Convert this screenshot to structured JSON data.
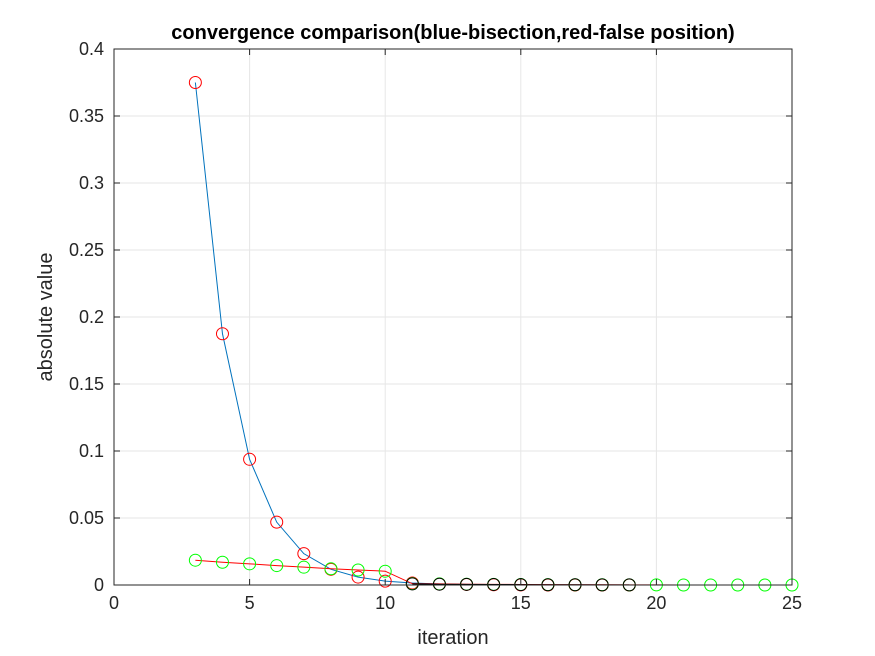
{
  "chart_data": {
    "type": "line",
    "title": "convergence comparison(blue-bisection,red-false position)",
    "xlabel": "iteration",
    "ylabel": "absolute value",
    "xlim": [
      0,
      25
    ],
    "ylim": [
      0,
      0.4
    ],
    "xticks": [
      "0",
      "5",
      "10",
      "15",
      "20",
      "25"
    ],
    "yticks": [
      "0",
      "0.05",
      "0.1",
      "0.15",
      "0.2",
      "0.25",
      "0.3",
      "0.35",
      "0.4"
    ],
    "grid": true,
    "series": [
      {
        "line_color": "#0072bd",
        "marker": "circle",
        "marker_color": "#ff0000",
        "x": [
          3,
          4,
          5,
          6,
          7,
          8,
          9,
          10,
          11,
          12,
          13,
          14,
          15,
          16,
          17,
          18,
          19
        ],
        "y": [
          0.375,
          0.1875,
          0.0938,
          0.0469,
          0.0234,
          0.0117,
          0.0059,
          0.0029,
          0.0015,
          0.0007,
          0.0004,
          0.0002,
          0.0001,
          0.0,
          0.0,
          0.0,
          0.0
        ]
      },
      {
        "line_color": "#ff0000",
        "marker": "circle",
        "marker_color": "#00ff00",
        "x": [
          3,
          4,
          5,
          6,
          7,
          8,
          9,
          10,
          11,
          12,
          13,
          14,
          15,
          16,
          17,
          18,
          19,
          20,
          21,
          22,
          23,
          24,
          25
        ],
        "y": [
          0.0185,
          0.017,
          0.0158,
          0.0145,
          0.0133,
          0.0121,
          0.0112,
          0.0103,
          0.001,
          0.0008,
          0.0006,
          0.0005,
          0.0004,
          0.0003,
          0.0002,
          0.0002,
          0.0001,
          0.0001,
          0.0,
          0.0,
          0.0,
          0.0,
          0.0
        ]
      },
      {
        "line_color": "#000000",
        "marker": "circle",
        "marker_color": "#000000",
        "x": [
          11,
          12,
          13,
          14,
          15,
          16,
          17,
          18,
          19
        ],
        "y": [
          0.0008,
          0.0006,
          0.0005,
          0.0004,
          0.0003,
          0.0002,
          0.0002,
          0.0001,
          0.0001
        ]
      }
    ]
  },
  "colors": {
    "axes_background": "#ffffff",
    "axes_edge": "#262626",
    "grid": "#e6e6e6"
  }
}
